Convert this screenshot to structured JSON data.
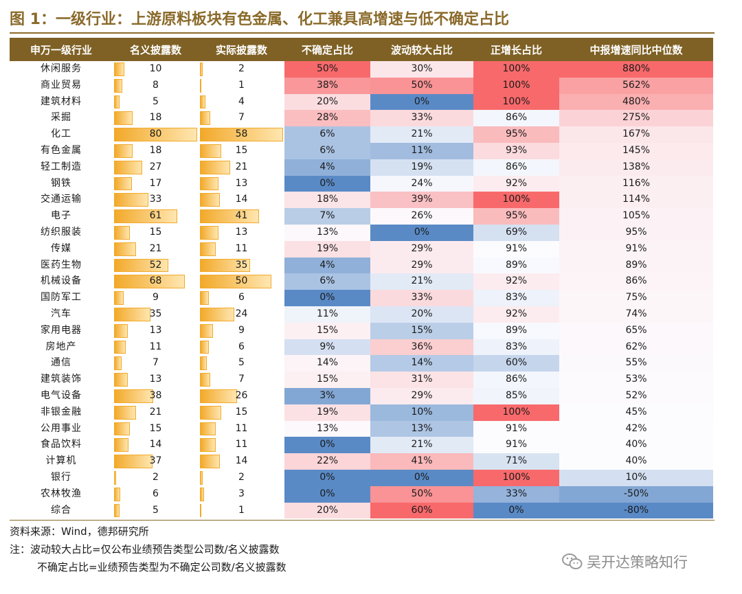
{
  "title": "图 1：一级行业：上游原料板块有色金属、化工兼具高增速与低不确定占比",
  "chart_data": {
    "type": "table",
    "columns": [
      "申万一级行业",
      "名义披露数",
      "实际披露数",
      "不确定占比",
      "波动较大占比",
      "正增长占比",
      "中报增速同比中位数"
    ],
    "rows": [
      {
        "industry": "休闲服务",
        "nominal": 10,
        "actual": 2,
        "uncertain": "50%",
        "volatile": "30%",
        "positive": "100%",
        "median": "880%"
      },
      {
        "industry": "商业贸易",
        "nominal": 8,
        "actual": 1,
        "uncertain": "38%",
        "volatile": "50%",
        "positive": "100%",
        "median": "562%"
      },
      {
        "industry": "建筑材料",
        "nominal": 5,
        "actual": 4,
        "uncertain": "20%",
        "volatile": "0%",
        "positive": "100%",
        "median": "480%"
      },
      {
        "industry": "采掘",
        "nominal": 18,
        "actual": 7,
        "uncertain": "28%",
        "volatile": "33%",
        "positive": "86%",
        "median": "275%"
      },
      {
        "industry": "化工",
        "nominal": 80,
        "actual": 58,
        "uncertain": "6%",
        "volatile": "21%",
        "positive": "95%",
        "median": "167%"
      },
      {
        "industry": "有色金属",
        "nominal": 18,
        "actual": 15,
        "uncertain": "6%",
        "volatile": "11%",
        "positive": "93%",
        "median": "145%"
      },
      {
        "industry": "轻工制造",
        "nominal": 27,
        "actual": 21,
        "uncertain": "4%",
        "volatile": "19%",
        "positive": "86%",
        "median": "138%"
      },
      {
        "industry": "钢铁",
        "nominal": 17,
        "actual": 13,
        "uncertain": "0%",
        "volatile": "24%",
        "positive": "92%",
        "median": "116%"
      },
      {
        "industry": "交通运输",
        "nominal": 33,
        "actual": 14,
        "uncertain": "18%",
        "volatile": "39%",
        "positive": "100%",
        "median": "114%"
      },
      {
        "industry": "电子",
        "nominal": 61,
        "actual": 41,
        "uncertain": "7%",
        "volatile": "26%",
        "positive": "95%",
        "median": "105%"
      },
      {
        "industry": "纺织服装",
        "nominal": 15,
        "actual": 13,
        "uncertain": "13%",
        "volatile": "0%",
        "positive": "69%",
        "median": "95%"
      },
      {
        "industry": "传媒",
        "nominal": 21,
        "actual": 11,
        "uncertain": "19%",
        "volatile": "29%",
        "positive": "91%",
        "median": "91%"
      },
      {
        "industry": "医药生物",
        "nominal": 52,
        "actual": 35,
        "uncertain": "4%",
        "volatile": "29%",
        "positive": "89%",
        "median": "89%"
      },
      {
        "industry": "机械设备",
        "nominal": 68,
        "actual": 50,
        "uncertain": "6%",
        "volatile": "21%",
        "positive": "92%",
        "median": "86%"
      },
      {
        "industry": "国防军工",
        "nominal": 9,
        "actual": 6,
        "uncertain": "0%",
        "volatile": "33%",
        "positive": "83%",
        "median": "75%"
      },
      {
        "industry": "汽车",
        "nominal": 35,
        "actual": 24,
        "uncertain": "11%",
        "volatile": "20%",
        "positive": "92%",
        "median": "74%"
      },
      {
        "industry": "家用电器",
        "nominal": 13,
        "actual": 9,
        "uncertain": "15%",
        "volatile": "15%",
        "positive": "89%",
        "median": "65%"
      },
      {
        "industry": "房地产",
        "nominal": 11,
        "actual": 6,
        "uncertain": "9%",
        "volatile": "36%",
        "positive": "83%",
        "median": "62%"
      },
      {
        "industry": "通信",
        "nominal": 7,
        "actual": 5,
        "uncertain": "14%",
        "volatile": "14%",
        "positive": "60%",
        "median": "55%"
      },
      {
        "industry": "建筑装饰",
        "nominal": 13,
        "actual": 7,
        "uncertain": "15%",
        "volatile": "31%",
        "positive": "86%",
        "median": "53%"
      },
      {
        "industry": "电气设备",
        "nominal": 38,
        "actual": 26,
        "uncertain": "3%",
        "volatile": "29%",
        "positive": "85%",
        "median": "52%"
      },
      {
        "industry": "非银金融",
        "nominal": 21,
        "actual": 15,
        "uncertain": "19%",
        "volatile": "10%",
        "positive": "100%",
        "median": "45%"
      },
      {
        "industry": "公用事业",
        "nominal": 15,
        "actual": 11,
        "uncertain": "13%",
        "volatile": "13%",
        "positive": "91%",
        "median": "42%"
      },
      {
        "industry": "食品饮料",
        "nominal": 14,
        "actual": 11,
        "uncertain": "0%",
        "volatile": "21%",
        "positive": "91%",
        "median": "40%"
      },
      {
        "industry": "计算机",
        "nominal": 37,
        "actual": 14,
        "uncertain": "22%",
        "volatile": "41%",
        "positive": "71%",
        "median": "40%"
      },
      {
        "industry": "银行",
        "nominal": 2,
        "actual": 2,
        "uncertain": "0%",
        "volatile": "0%",
        "positive": "100%",
        "median": "10%"
      },
      {
        "industry": "农林牧渔",
        "nominal": 6,
        "actual": 3,
        "uncertain": "0%",
        "volatile": "50%",
        "positive": "33%",
        "median": "-50%"
      },
      {
        "industry": "综合",
        "nominal": 5,
        "actual": 1,
        "uncertain": "20%",
        "volatile": "60%",
        "positive": "0%",
        "median": "-80%"
      }
    ],
    "bar_max": {
      "nominal": 80,
      "actual": 58
    },
    "heat_colors": {
      "low": "#5a8ac6",
      "mid": "#fcfcff",
      "high": "#f8696b"
    }
  },
  "notes": {
    "source": "资料来源：Wind，德邦研究所",
    "note1": "注：波动较大占比=仅公布业绩预告类型公司数/名义披露数",
    "note2": "不确定占比=业绩预告类型为不确定公司数/名义披露数"
  },
  "watermark": "吴开达策略知行"
}
